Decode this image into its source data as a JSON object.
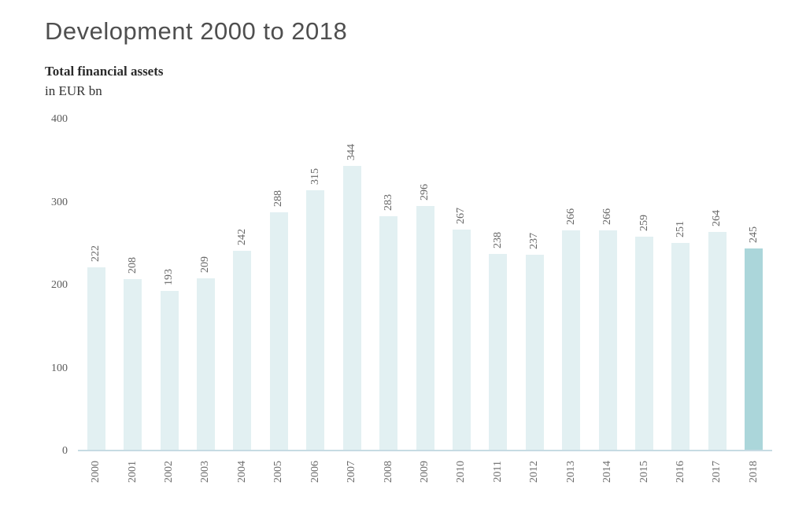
{
  "header": {
    "title": "Development 2000 to 2018",
    "subtitle": "Total financial assets",
    "unit": "in EUR bn"
  },
  "chart_data": {
    "type": "bar",
    "title": "Development 2000 to 2018",
    "subtitle": "Total financial assets",
    "xlabel": "",
    "ylabel": "in EUR bn",
    "categories": [
      "2000",
      "2001",
      "2002",
      "2003",
      "2004",
      "2005",
      "2006",
      "2007",
      "2008",
      "2009",
      "2010",
      "2011",
      "2012",
      "2013",
      "2014",
      "2015",
      "2016",
      "2017",
      "2018"
    ],
    "values": [
      222,
      208,
      193,
      209,
      242,
      288,
      315,
      344,
      283,
      296,
      267,
      238,
      237,
      266,
      266,
      259,
      251,
      264,
      245
    ],
    "ylim": [
      0,
      400
    ],
    "yticks": [
      0,
      100,
      200,
      300,
      400
    ],
    "grid": "off",
    "legend": "none",
    "data_labels": "rotated-90-above-bars",
    "tick_labels": "rotated-90-below-axis",
    "highlight_category": "2018",
    "colors": {
      "bar": "#e2f0f2",
      "highlight_bar": "#abd6da",
      "axis_line": "#c6dbe3",
      "title_text": "#4f4f4f",
      "label_text": "#666666"
    }
  }
}
